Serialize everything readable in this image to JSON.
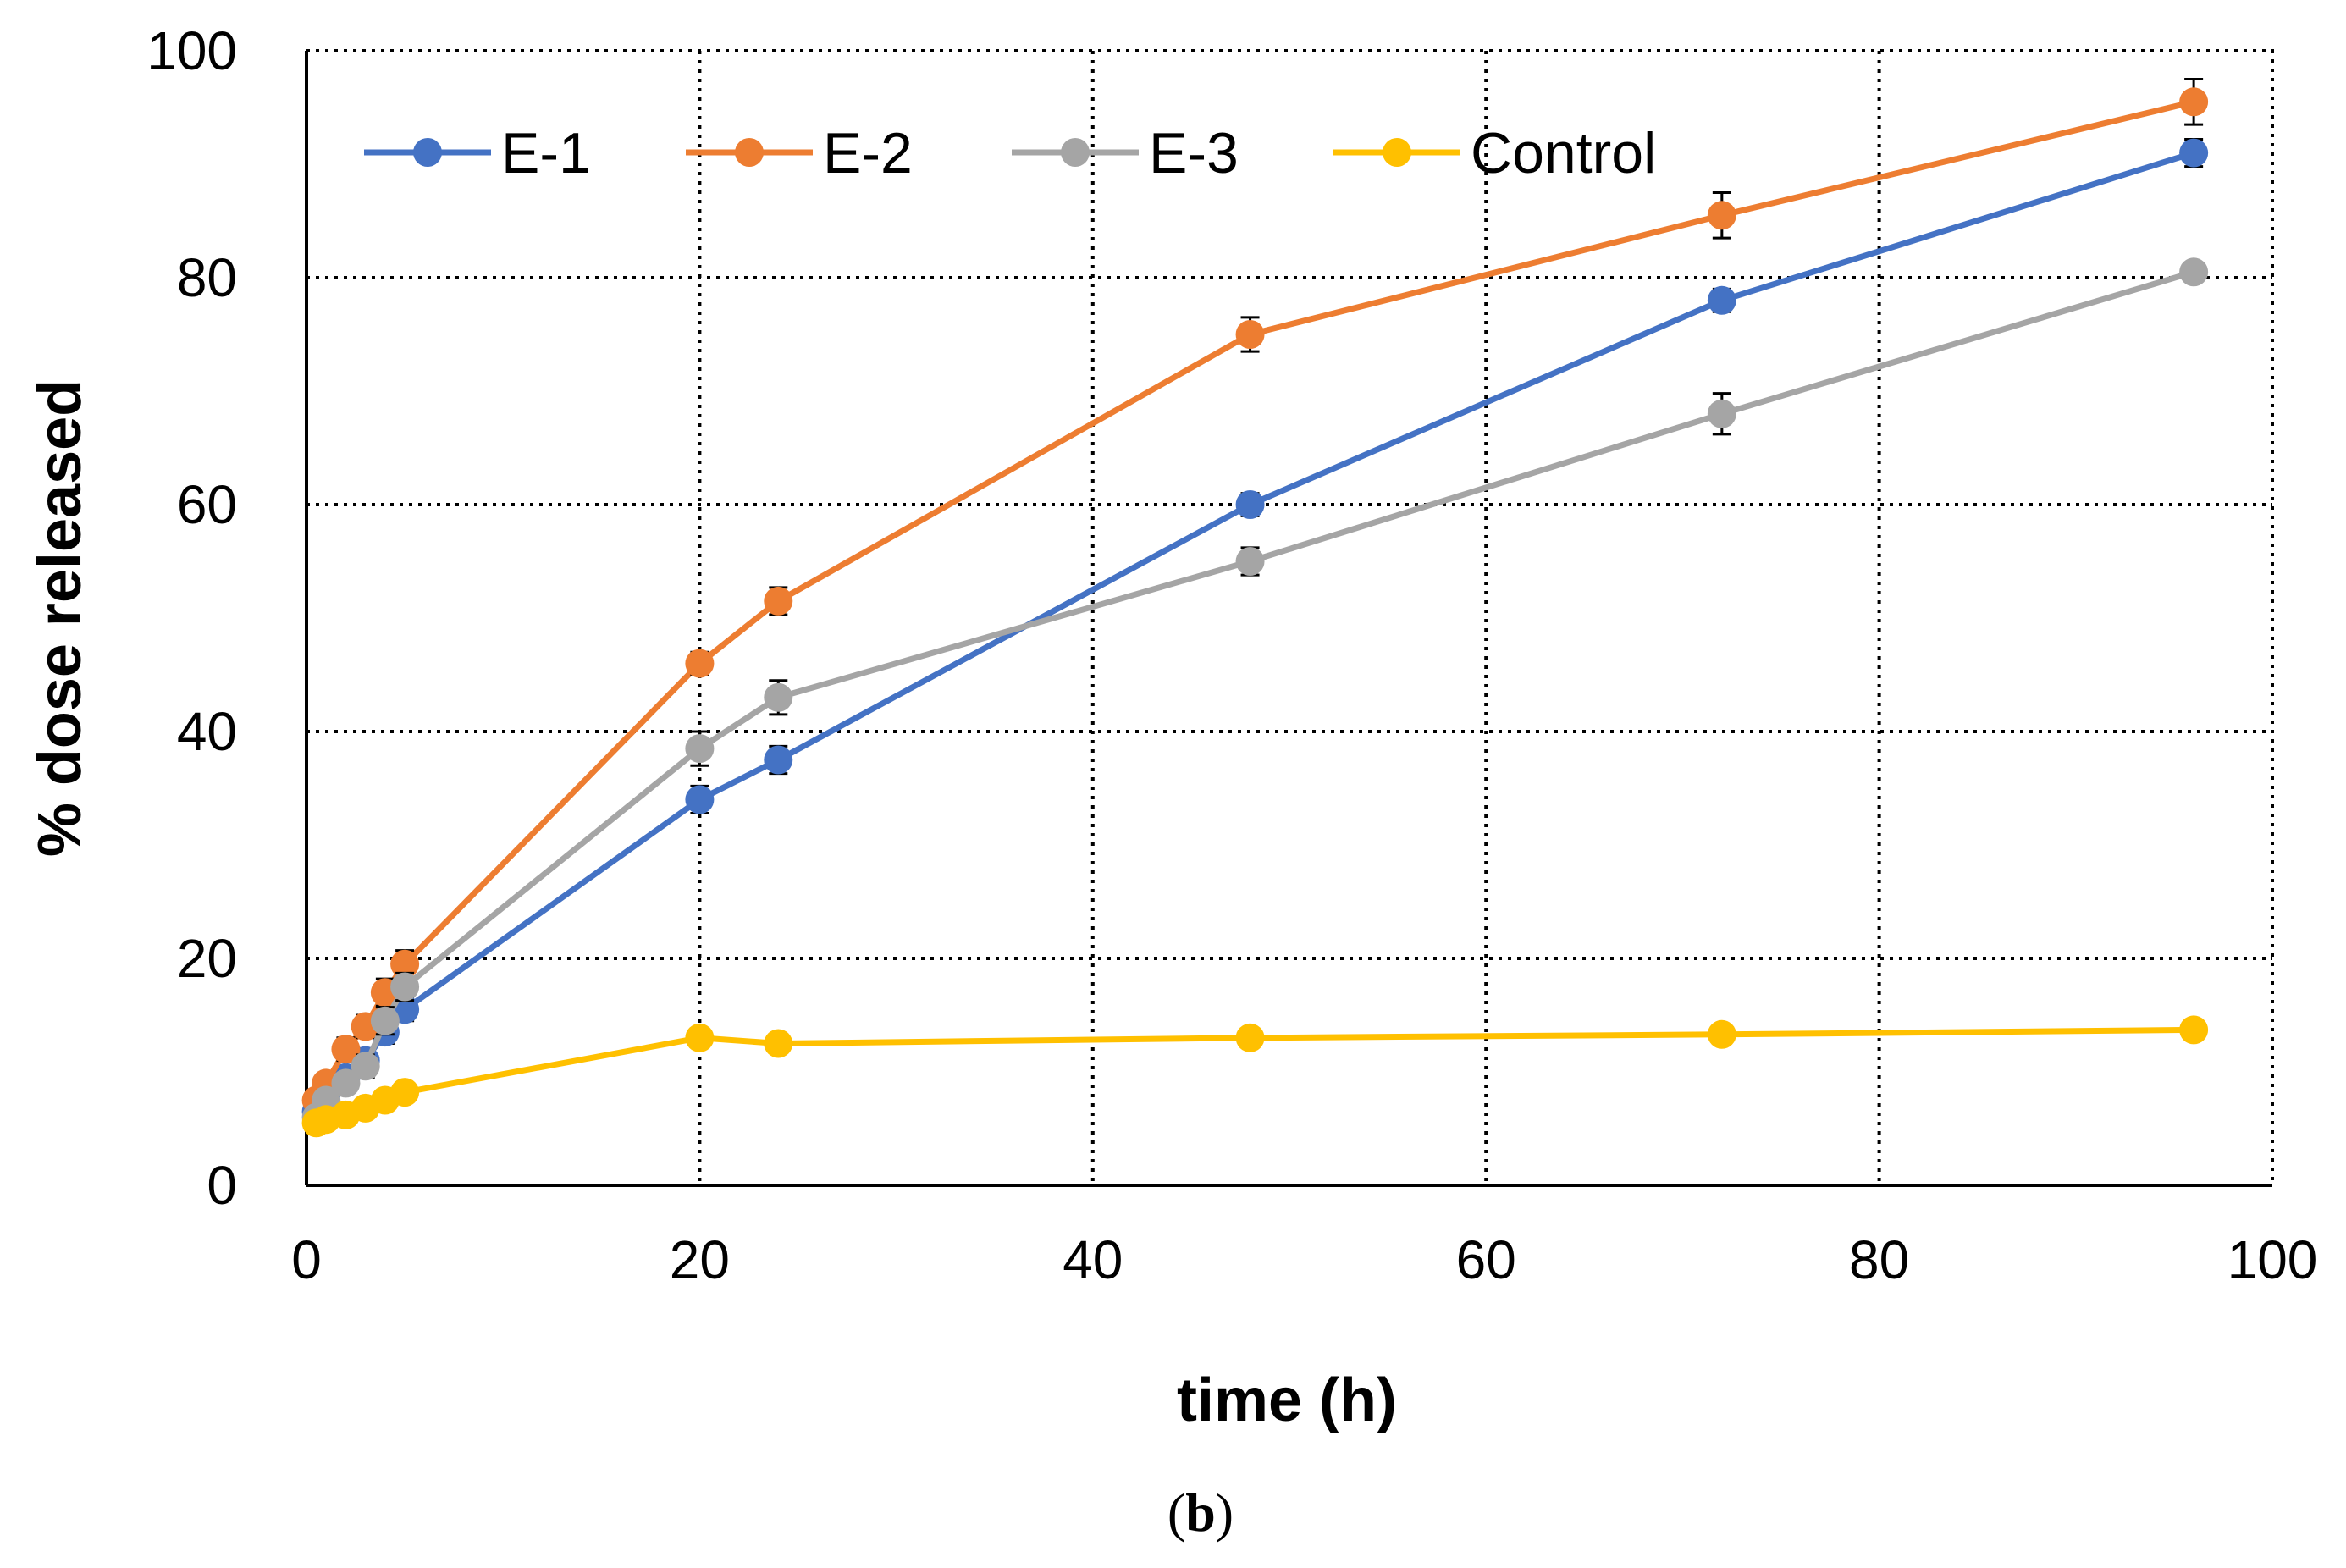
{
  "chart_data": {
    "type": "line",
    "title": "",
    "xlabel": "time (h)",
    "ylabel": "% dose released",
    "xlim": [
      0,
      100
    ],
    "ylim": [
      0,
      100
    ],
    "xticks": [
      0,
      20,
      40,
      60,
      80,
      100
    ],
    "yticks": [
      0,
      20,
      40,
      60,
      80,
      100
    ],
    "grid": true,
    "legend_position": "top-left",
    "panel_label": {
      "open": "(",
      "letter": "b",
      "close": ")"
    },
    "series": [
      {
        "name": "E-1",
        "color": "#4472C4",
        "x": [
          0.5,
          1,
          2,
          3,
          4,
          5,
          20,
          24,
          48,
          72,
          96
        ],
        "y": [
          6.5,
          8,
          9.5,
          11,
          13.5,
          15.5,
          34,
          37.5,
          60,
          78,
          91
        ],
        "err": [
          0.5,
          0.5,
          0.6,
          0.8,
          1.0,
          1.0,
          1.2,
          1.2,
          1.0,
          1.0,
          1.2
        ]
      },
      {
        "name": "E-2",
        "color": "#ED7D31",
        "x": [
          0.5,
          1,
          2,
          3,
          4,
          5,
          20,
          24,
          48,
          72,
          96
        ],
        "y": [
          7.5,
          9,
          12,
          14,
          17,
          19.5,
          46,
          51.5,
          75,
          85.5,
          95.5
        ],
        "err": [
          0.5,
          0.6,
          1.0,
          1.0,
          1.2,
          1.2,
          1.0,
          1.2,
          1.5,
          2.0,
          2.0
        ]
      },
      {
        "name": "E-3",
        "color": "#A5A5A5",
        "x": [
          0.5,
          1,
          2,
          3,
          4,
          5,
          20,
          24,
          48,
          72,
          96
        ],
        "y": [
          6,
          7.5,
          9,
          10.5,
          14.5,
          17.5,
          38.5,
          43,
          55,
          68,
          80.5
        ],
        "err": [
          0.5,
          0.6,
          0.8,
          1.0,
          1.2,
          1.2,
          1.5,
          1.5,
          1.2,
          1.8,
          0.8
        ]
      },
      {
        "name": "Control",
        "color": "#FFC000",
        "x": [
          0.5,
          1,
          2,
          3,
          4,
          5,
          20,
          24,
          48,
          72,
          96
        ],
        "y": [
          5.5,
          5.8,
          6.2,
          6.8,
          7.5,
          8.2,
          13,
          12.5,
          13,
          13.3,
          13.7
        ],
        "err": [
          0.3,
          0.3,
          0.3,
          0.3,
          0.3,
          0.4,
          0.4,
          0.4,
          0.3,
          0.3,
          0.3
        ]
      }
    ]
  }
}
